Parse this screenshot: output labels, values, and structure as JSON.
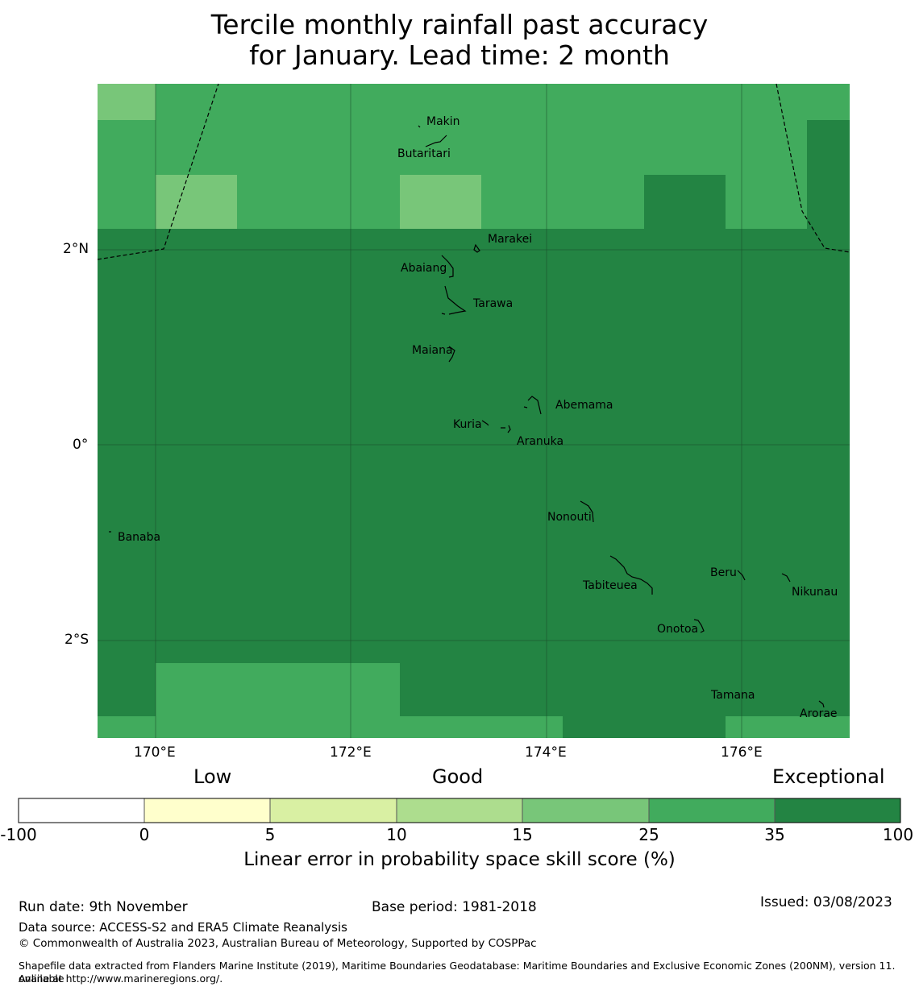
{
  "title": {
    "line1": "Tercile monthly rainfall past accuracy",
    "line2": "for January. Lead time: 2 month"
  },
  "map": {
    "lat_ticks": [
      "2°N",
      "0°",
      "2°S"
    ],
    "lon_ticks": [
      "170°E",
      "172°E",
      "174°E",
      "176°E"
    ],
    "places": [
      {
        "name": "Makin"
      },
      {
        "name": "Butaritari"
      },
      {
        "name": "Marakei"
      },
      {
        "name": "Abaiang"
      },
      {
        "name": "Tarawa"
      },
      {
        "name": "Maiana"
      },
      {
        "name": "Abemama"
      },
      {
        "name": "Kuria"
      },
      {
        "name": "Aranuka"
      },
      {
        "name": "Nonouti"
      },
      {
        "name": "Banaba"
      },
      {
        "name": "Beru"
      },
      {
        "name": "Tabiteuea"
      },
      {
        "name": "Nikunau"
      },
      {
        "name": "Onotoa"
      },
      {
        "name": "Tamana"
      },
      {
        "name": "Arorae"
      }
    ]
  },
  "legend": {
    "category_labels": [
      "Low",
      "Good",
      "Exceptional"
    ],
    "ticks": [
      "-100",
      "0",
      "5",
      "10",
      "15",
      "25",
      "35",
      "100"
    ],
    "colors": [
      "#ffffff",
      "#ffffcc",
      "#d9f0a3",
      "#addd8e",
      "#78c679",
      "#41ab5d",
      "#238443"
    ],
    "title": "Linear error in probability space skill score (%)"
  },
  "footer": {
    "run_date": "Run date: 9th November",
    "base_period": "Base period: 1981-2018",
    "issued": "Issued: 03/08/2023",
    "data_source": "Data source: ACCESS-S2 and ERA5 Climate Reanalysis",
    "copyright": "© Commonwealth of Australia 2023, Australian Bureau of Meteorology, Supported by COSPPac",
    "shapefile_line1": "Shapefile data extracted from Flanders Marine Institute (2019), Maritime Boundaries Geodatabase: Maritime Boundaries and Exclusive Economic Zones (200NM), version 11. Available",
    "shapefile_line2": "online at http://www.marineregions.org/."
  }
}
